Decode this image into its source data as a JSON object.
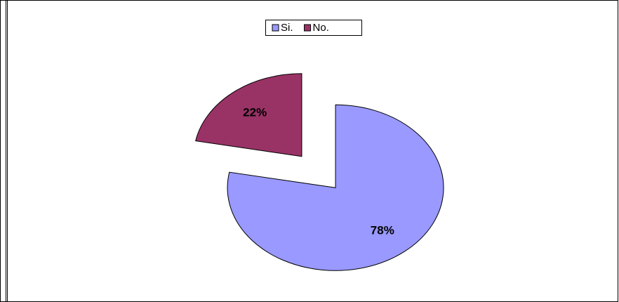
{
  "chart_data": {
    "type": "pie",
    "categories": [
      "Si.",
      "No."
    ],
    "values": [
      78,
      22
    ],
    "value_labels": [
      "78%",
      "22%"
    ],
    "colors": [
      "#9999ff",
      "#993366"
    ],
    "legend": "top"
  }
}
